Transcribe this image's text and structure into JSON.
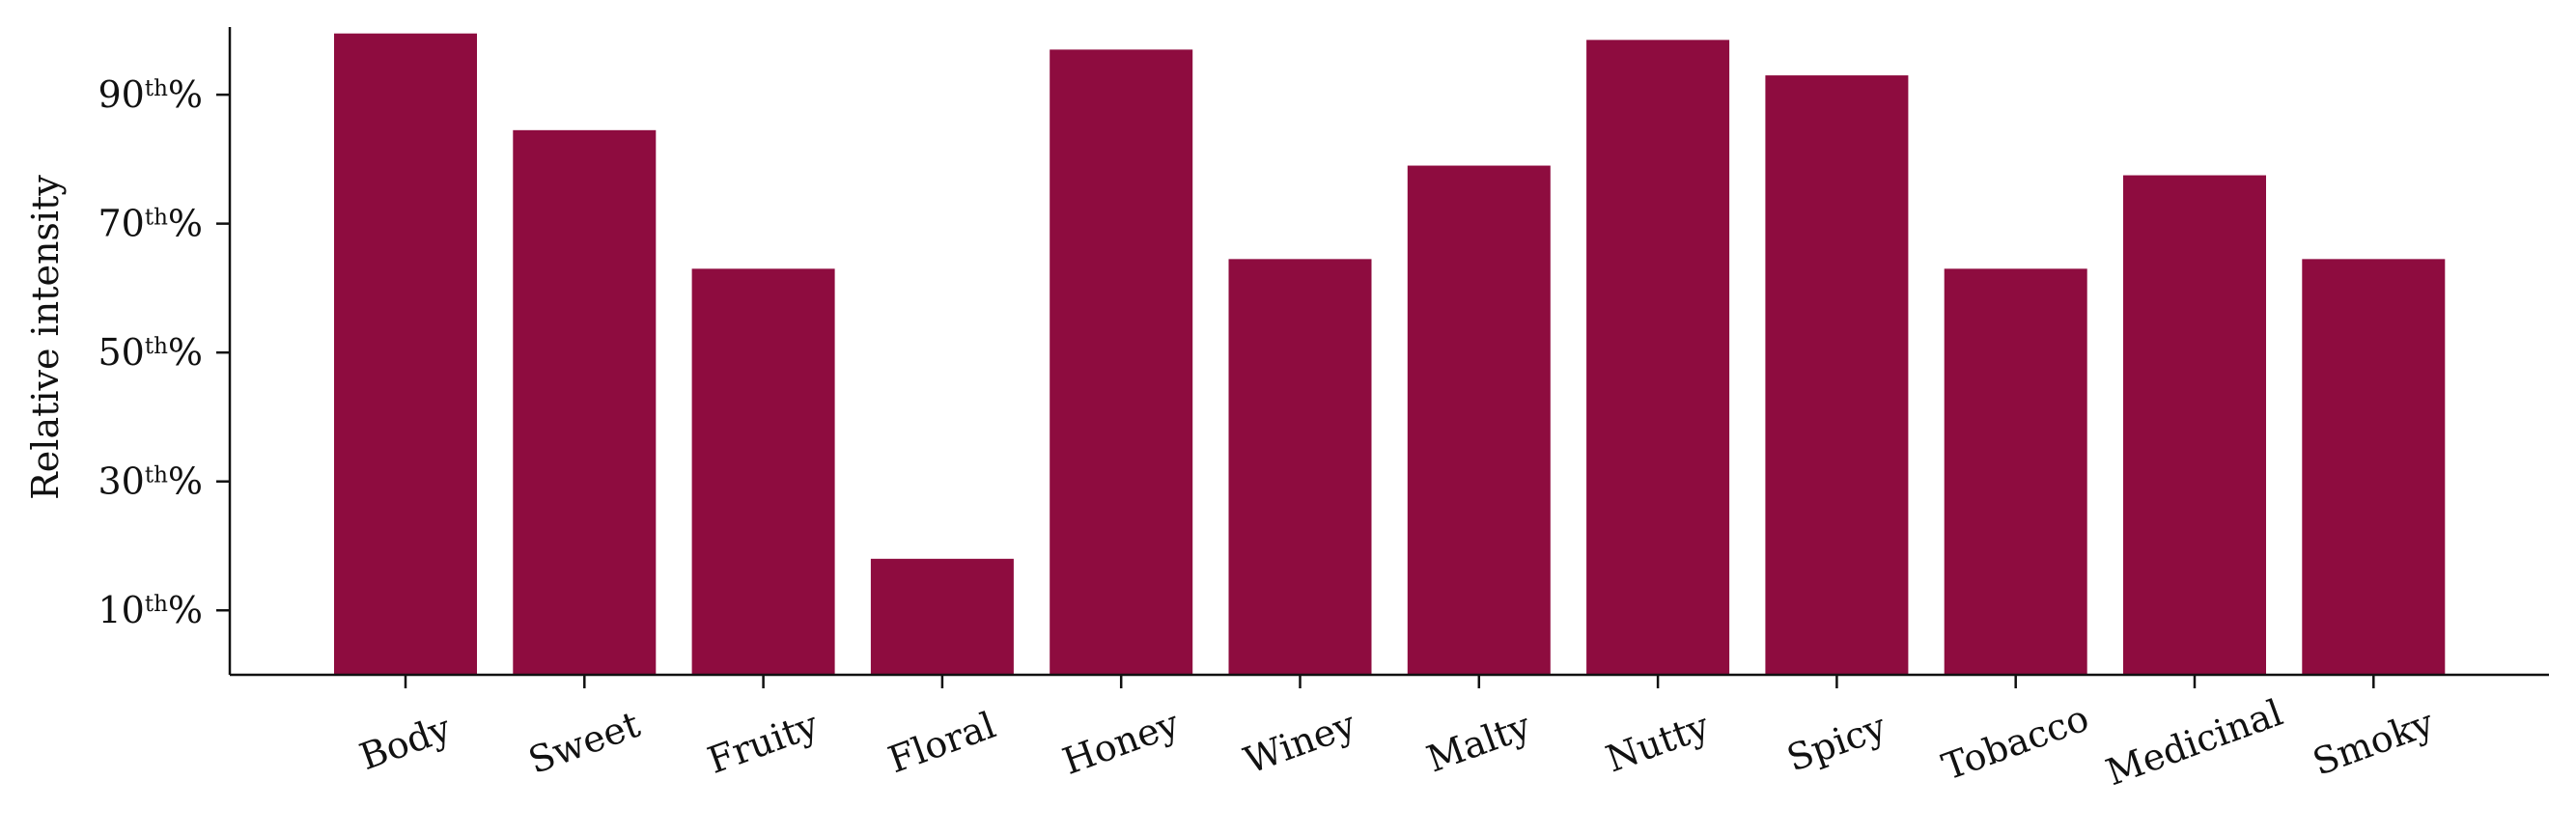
{
  "chart_data": {
    "type": "bar",
    "categories": [
      "Body",
      "Sweet",
      "Fruity",
      "Floral",
      "Honey",
      "Winey",
      "Malty",
      "Nutty",
      "Spicy",
      "Tobacco",
      "Medicinal",
      "Smoky"
    ],
    "values": [
      99.5,
      84.5,
      63,
      18,
      97,
      64.5,
      79,
      98.5,
      93,
      63,
      77.5,
      64.5
    ],
    "ylabel": "Relative intensity",
    "yticks": [
      {
        "value": 10,
        "num": "10",
        "sup": "th",
        "suffix": "%"
      },
      {
        "value": 30,
        "num": "30",
        "sup": "th",
        "suffix": "%"
      },
      {
        "value": 50,
        "num": "50",
        "sup": "th",
        "suffix": "%"
      },
      {
        "value": 70,
        "num": "70",
        "sup": "th",
        "suffix": "%"
      },
      {
        "value": 90,
        "num": "90",
        "sup": "th",
        "suffix": "%"
      }
    ],
    "ylim": [
      0,
      100.5
    ],
    "bar_color": "#8e0c3f",
    "grid": false,
    "xtick_rotation_deg": -20
  }
}
